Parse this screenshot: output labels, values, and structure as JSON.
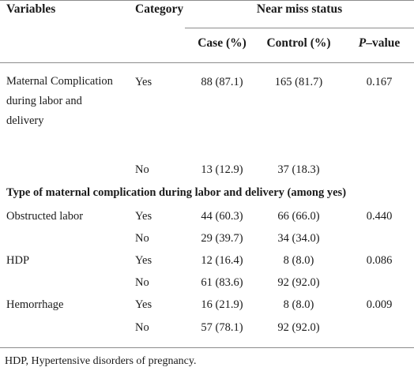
{
  "header": {
    "variables": "Variables",
    "category": "Category",
    "group": "Near miss status",
    "case": "Case (%)",
    "control": "Control (%)",
    "pvalue_italic": "P",
    "pvalue_rest": "–value"
  },
  "rows": [
    {
      "variable": "Maternal Complication during labor and delivery",
      "category": "Yes",
      "case": "88 (87.1)",
      "control": "165 (81.7)",
      "p": "0.167"
    },
    {
      "variable": "",
      "category": "No",
      "case": "13 (12.9)",
      "control": "37 (18.3)",
      "p": ""
    },
    {
      "section": "Type of maternal complication during labor and delivery (among yes)"
    },
    {
      "variable": "Obstructed labor",
      "category": "Yes",
      "case": "44 (60.3)",
      "control": "66 (66.0)",
      "p": "0.440"
    },
    {
      "variable": "",
      "category": "No",
      "case": "29 (39.7)",
      "control": "34 (34.0)",
      "p": ""
    },
    {
      "variable": "HDP",
      "category": "Yes",
      "case": "12 (16.4)",
      "control": "8 (8.0)",
      "p": "0.086"
    },
    {
      "variable": "",
      "category": "No",
      "case": "61 (83.6)",
      "control": "92 (92.0)",
      "p": ""
    },
    {
      "variable": "Hemorrhage",
      "category": "Yes",
      "case": "16 (21.9)",
      "control": "8 (8.0)",
      "p": "0.009"
    },
    {
      "variable": "",
      "category": "No",
      "case": "57 (78.1)",
      "control": "92 (92.0)",
      "p": ""
    }
  ],
  "footnote": "HDP, Hypertensive disorders of pregnancy."
}
